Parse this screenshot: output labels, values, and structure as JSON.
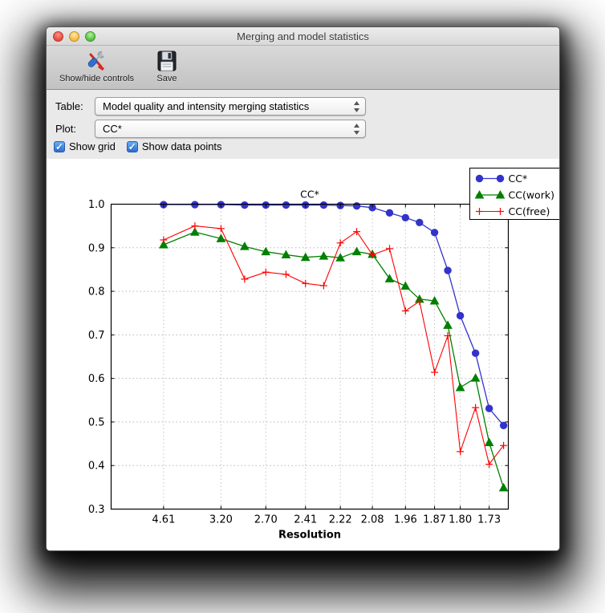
{
  "window": {
    "title": "Merging and model statistics"
  },
  "toolbar": {
    "items": [
      {
        "label": "Show/hide controls",
        "icon": "tools-icon"
      },
      {
        "label": "Save",
        "icon": "save-icon"
      }
    ]
  },
  "controls": {
    "table_label": "Table:",
    "table_value": "Model quality and intensity merging statistics",
    "plot_label": "Plot:",
    "plot_value": "CC*",
    "checkboxes": [
      {
        "label": "Show grid",
        "checked": true,
        "check_glyph": "✓"
      },
      {
        "label": "Show data points",
        "checked": true,
        "check_glyph": "✓"
      }
    ]
  },
  "chart_data": {
    "type": "line",
    "title": "CC*",
    "xlabel": "Resolution",
    "ylabel": "",
    "ylim": [
      0.3,
      1.0
    ],
    "yticks": [
      0.3,
      0.4,
      0.5,
      0.6,
      0.7,
      0.8,
      0.9,
      1.0
    ],
    "grid": true,
    "legend_position": "upper right",
    "x_axis_scale": "inverse_d_squared",
    "resolution_bins": [
      4.61,
      3.66,
      3.2,
      2.905,
      2.7,
      2.54,
      2.41,
      2.305,
      2.22,
      2.145,
      2.08,
      2.015,
      1.96,
      1.915,
      1.87,
      1.833,
      1.8,
      1.762,
      1.73,
      1.698
    ],
    "xtick_indices": [
      0,
      2,
      4,
      6,
      8,
      10,
      12,
      14,
      16,
      18
    ],
    "xtick_labels": [
      "4.61",
      "3.20",
      "2.70",
      "2.41",
      "2.22",
      "2.08",
      "1.96",
      "1.87",
      "1.80",
      "1.73"
    ],
    "series": [
      {
        "name": "CC*",
        "color": "#3333cc",
        "marker": "circle",
        "values": [
          0.999,
          0.999,
          0.999,
          0.998,
          0.998,
          0.998,
          0.998,
          0.998,
          0.997,
          0.996,
          0.992,
          0.98,
          0.969,
          0.958,
          0.935,
          0.848,
          0.744,
          0.658,
          0.531,
          0.492
        ]
      },
      {
        "name": "CC(work)",
        "color": "#008000",
        "marker": "triangle",
        "values": [
          0.907,
          0.936,
          0.921,
          0.903,
          0.891,
          0.884,
          0.878,
          0.881,
          0.877,
          0.891,
          0.885,
          0.829,
          0.812,
          0.782,
          0.778,
          0.722,
          0.579,
          0.601,
          0.453,
          0.349
        ]
      },
      {
        "name": "CC(free)",
        "color": "#ff0000",
        "marker": "plus",
        "values": [
          0.918,
          0.95,
          0.944,
          0.828,
          0.844,
          0.839,
          0.818,
          0.813,
          0.911,
          0.937,
          0.884,
          0.898,
          0.755,
          0.777,
          0.614,
          0.698,
          0.432,
          0.533,
          0.403,
          0.446
        ]
      }
    ]
  }
}
